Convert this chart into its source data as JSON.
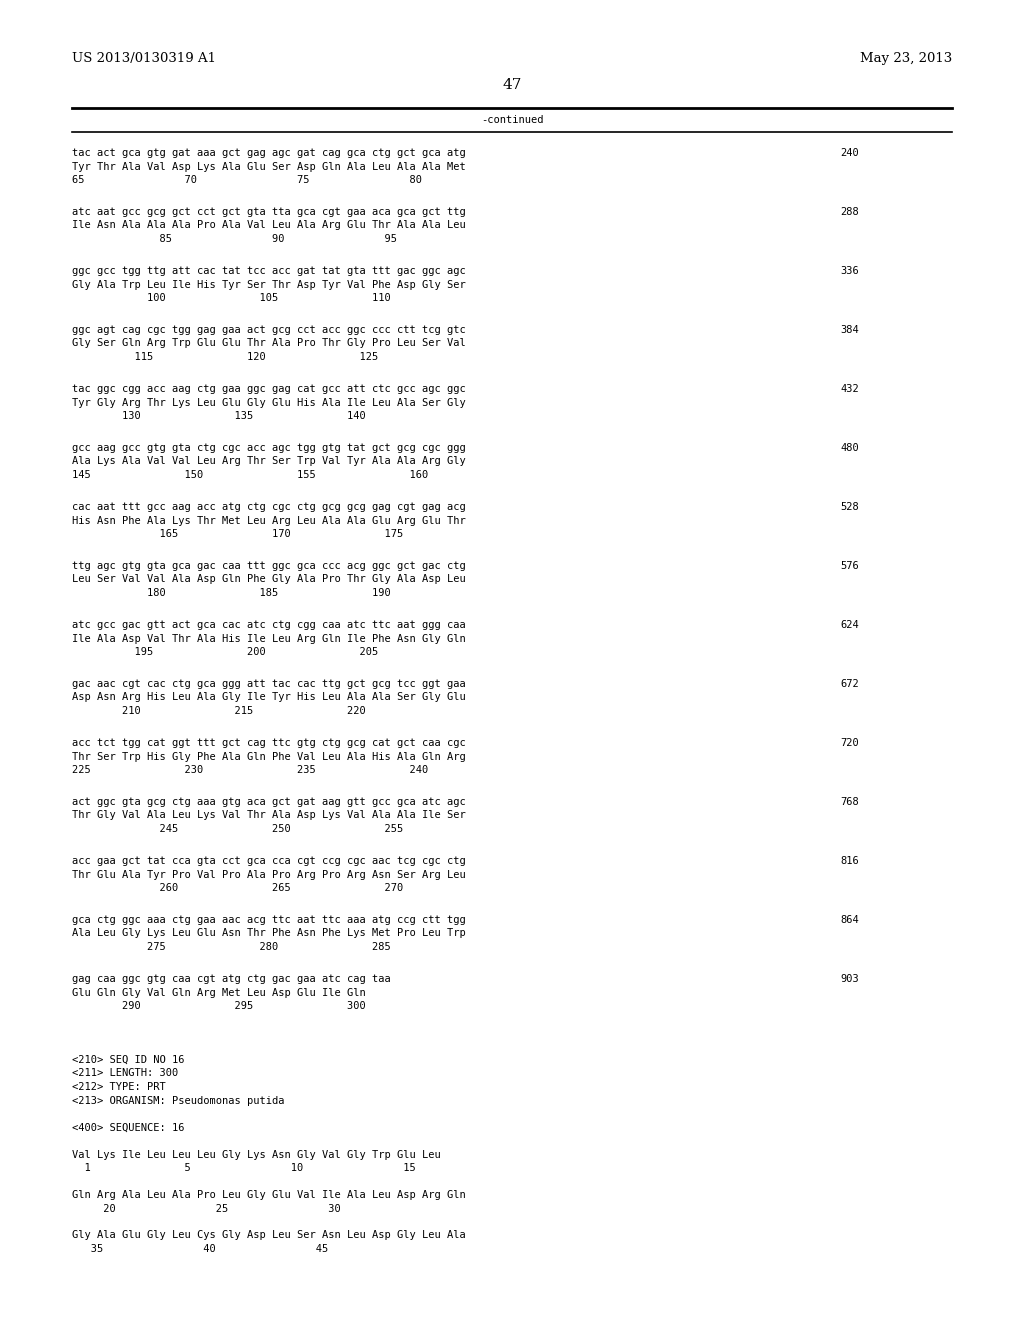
{
  "header_left": "US 2013/0130319 A1",
  "header_right": "May 23, 2013",
  "page_number": "47",
  "continued_text": "-continued",
  "background_color": "#ffffff",
  "text_color": "#000000",
  "mono_font_size": 7.5,
  "header_font_size": 9.5,
  "page_num_font_size": 11,
  "seq_blocks": [
    {
      "dna": "tac act gca gtg gat aaa gct gag agc gat cag gca ctg gct gca atg",
      "aa": "Tyr Thr Ala Val Asp Lys Ala Glu Ser Asp Gln Ala Leu Ala Ala Met",
      "nums": "65                70                75                80",
      "right_num": "240"
    },
    {
      "dna": "atc aat gcc gcg gct cct gct gta tta gca cgt gaa aca gca gct ttg",
      "aa": "Ile Asn Ala Ala Ala Pro Ala Val Leu Ala Arg Glu Thr Ala Ala Leu",
      "nums": "              85                90                95",
      "right_num": "288"
    },
    {
      "dna": "ggc gcc tgg ttg att cac tat tcc acc gat tat gta ttt gac ggc agc",
      "aa": "Gly Ala Trp Leu Ile His Tyr Ser Thr Asp Tyr Val Phe Asp Gly Ser",
      "nums": "            100               105               110",
      "right_num": "336"
    },
    {
      "dna": "ggc agt cag cgc tgg gag gaa act gcg cct acc ggc ccc ctt tcg gtc",
      "aa": "Gly Ser Gln Arg Trp Glu Glu Thr Ala Pro Thr Gly Pro Leu Ser Val",
      "nums": "          115               120               125",
      "right_num": "384"
    },
    {
      "dna": "tac ggc cgg acc aag ctg gaa ggc gag cat gcc att ctc gcc agc ggc",
      "aa": "Tyr Gly Arg Thr Lys Leu Glu Gly Glu His Ala Ile Leu Ala Ser Gly",
      "nums": "        130               135               140",
      "right_num": "432"
    },
    {
      "dna": "gcc aag gcc gtg gta ctg cgc acc agc tgg gtg tat gct gcg cgc ggg",
      "aa": "Ala Lys Ala Val Val Leu Arg Thr Ser Trp Val Tyr Ala Ala Arg Gly",
      "nums": "145               150               155               160",
      "right_num": "480"
    },
    {
      "dna": "cac aat ttt gcc aag acc atg ctg cgc ctg gcg gcg gag cgt gag acg",
      "aa": "His Asn Phe Ala Lys Thr Met Leu Arg Leu Ala Ala Glu Arg Glu Thr",
      "nums": "              165               170               175",
      "right_num": "528"
    },
    {
      "dna": "ttg agc gtg gta gca gac caa ttt ggc gca ccc acg ggc gct gac ctg",
      "aa": "Leu Ser Val Val Ala Asp Gln Phe Gly Ala Pro Thr Gly Ala Asp Leu",
      "nums": "            180               185               190",
      "right_num": "576"
    },
    {
      "dna": "atc gcc gac gtt act gca cac atc ctg cgg caa atc ttc aat ggg caa",
      "aa": "Ile Ala Asp Val Thr Ala His Ile Leu Arg Gln Ile Phe Asn Gly Gln",
      "nums": "          195               200               205",
      "right_num": "624"
    },
    {
      "dna": "gac aac cgt cac ctg gca ggg att tac cac ttg gct gcg tcc ggt gaa",
      "aa": "Asp Asn Arg His Leu Ala Gly Ile Tyr His Leu Ala Ala Ser Gly Glu",
      "nums": "        210               215               220",
      "right_num": "672"
    },
    {
      "dna": "acc tct tgg cat ggt ttt gct cag ttc gtg ctg gcg cat gct caa cgc",
      "aa": "Thr Ser Trp His Gly Phe Ala Gln Phe Val Leu Ala His Ala Gln Arg",
      "nums": "225               230               235               240",
      "right_num": "720"
    },
    {
      "dna": "act ggc gta gcg ctg aaa gtg aca gct gat aag gtt gcc gca atc agc",
      "aa": "Thr Gly Val Ala Leu Lys Val Thr Ala Asp Lys Val Ala Ala Ile Ser",
      "nums": "              245               250               255",
      "right_num": "768"
    },
    {
      "dna": "acc gaa gct tat cca gta cct gca cca cgt ccg cgc aac tcg cgc ctg",
      "aa": "Thr Glu Ala Tyr Pro Val Pro Ala Pro Arg Pro Arg Asn Ser Arg Leu",
      "nums": "              260               265               270",
      "right_num": "816"
    },
    {
      "dna": "gca ctg ggc aaa ctg gaa aac acg ttc aat ttc aaa atg ccg ctt tgg",
      "aa": "Ala Leu Gly Lys Leu Glu Asn Thr Phe Asn Phe Lys Met Pro Leu Trp",
      "nums": "            275               280               285",
      "right_num": "864"
    },
    {
      "dna": "gag caa ggc gtg caa cgt atg ctg gac gaa atc cag taa",
      "aa": "Glu Gln Gly Val Gln Arg Met Leu Asp Glu Ile Gln",
      "nums": "        290               295               300",
      "right_num": "903"
    }
  ],
  "meta_lines": [
    "<210> SEQ ID NO 16",
    "<211> LENGTH: 300",
    "<212> TYPE: PRT",
    "<213> ORGANISM: Pseudomonas putida",
    "",
    "<400> SEQUENCE: 16",
    "",
    "Val Lys Ile Leu Leu Leu Gly Lys Asn Gly Val Gly Trp Glu Leu",
    "  1               5                10                15",
    "",
    "Gln Arg Ala Leu Ala Pro Leu Gly Glu Val Ile Ala Leu Asp Arg Gln",
    "     20                25                30",
    "",
    "Gly Ala Glu Gly Leu Cys Gly Asp Leu Ser Asn Leu Asp Gly Leu Ala",
    "   35                40                45"
  ]
}
